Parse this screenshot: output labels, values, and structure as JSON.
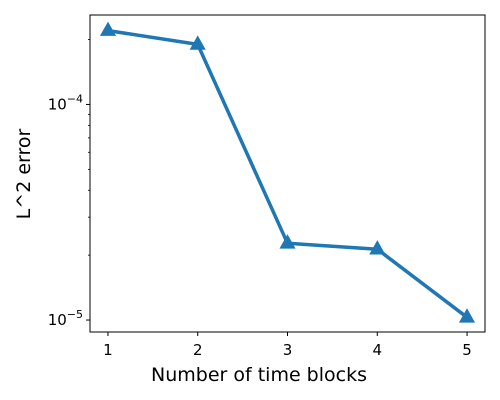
{
  "chart_data": {
    "type": "line",
    "title": "",
    "xlabel": "Number of time blocks",
    "ylabel": "L^2 error",
    "yscale": "log",
    "xlim": [
      0.8,
      5.2
    ],
    "ylim": [
      8.8e-06,
      0.00026
    ],
    "x_ticks": [
      {
        "value": 1,
        "label": "1"
      },
      {
        "value": 2,
        "label": "2"
      },
      {
        "value": 3,
        "label": "3"
      },
      {
        "value": 4,
        "label": "4"
      },
      {
        "value": 5,
        "label": "5"
      }
    ],
    "y_major_ticks": [
      {
        "value": 1e-05,
        "base": "10",
        "exp": "−5"
      },
      {
        "value": 0.0001,
        "base": "10",
        "exp": "−4"
      }
    ],
    "y_minor_ticks": [
      2e-05,
      3e-05,
      4e-05,
      5e-05,
      6e-05,
      7e-05,
      8e-05,
      9e-05,
      0.0002
    ],
    "grid": false,
    "legend": "none",
    "series": [
      {
        "color": "#1f77b4",
        "marker": "triangle",
        "x": [
          1,
          2,
          3,
          4,
          5
        ],
        "y": [
          0.00022,
          0.00019,
          2.27e-05,
          2.13e-05,
          1.03e-05
        ]
      }
    ]
  }
}
